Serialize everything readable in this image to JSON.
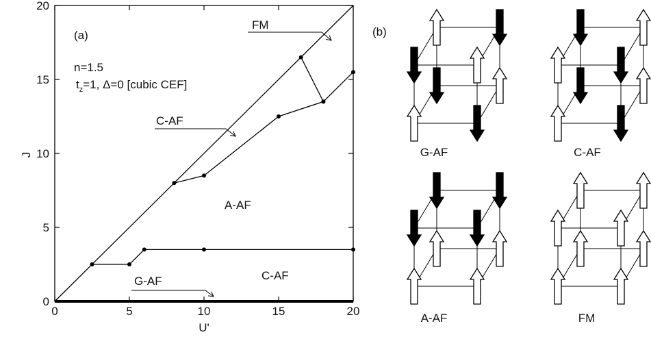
{
  "chart_data": {
    "type": "line",
    "x_label": "U'",
    "y_label": "J",
    "xlim": [
      0,
      20
    ],
    "ylim": [
      0,
      20
    ],
    "xticks": [
      0,
      5,
      10,
      15,
      20
    ],
    "yticks": [
      0,
      5,
      10,
      15,
      20
    ],
    "color": "#000000",
    "series": [
      {
        "x": [
          0,
          20
        ],
        "values": [
          0,
          20
        ],
        "markers": false,
        "linewidth": 1.3
      },
      {
        "x": [
          0,
          20
        ],
        "values": [
          0,
          0
        ],
        "markers": false,
        "linewidth": 4
      },
      {
        "x": [
          2.5,
          5,
          6,
          10,
          20
        ],
        "values": [
          2.5,
          2.5,
          3.5,
          3.5,
          3.5
        ],
        "markers": true,
        "linewidth": 1.3
      },
      {
        "x": [
          8,
          10,
          15,
          18,
          20
        ],
        "values": [
          8,
          8.5,
          12.5,
          13.5,
          15.5
        ],
        "markers": true,
        "linewidth": 1.3
      },
      {
        "x": [
          16.5,
          18
        ],
        "values": [
          16.5,
          13.5
        ],
        "markers": true,
        "linewidth": 1.3
      }
    ],
    "annotations": [
      "(a)",
      "n=1.5",
      "A-AF",
      "C-AF",
      "FM",
      "C-AF",
      "G-AF"
    ],
    "params": {
      "symbol": "t",
      "subscript": "z",
      "rest": "=1, Δ=0 [cubic CEF]"
    }
  },
  "spin_panel": {
    "label": "(b)",
    "configs": [
      {
        "name": "G-AF",
        "spins": [
          "up",
          "down",
          "down",
          "up",
          "down",
          "up",
          "up",
          "down"
        ]
      },
      {
        "name": "C-AF",
        "spins": [
          "down",
          "up",
          "up",
          "down",
          "down",
          "up",
          "up",
          "down"
        ]
      },
      {
        "name": "A-AF",
        "spins": [
          "down",
          "down",
          "down",
          "down",
          "up",
          "up",
          "up",
          "up"
        ]
      },
      {
        "name": "FM",
        "spins": [
          "up",
          "up",
          "up",
          "up",
          "up",
          "up",
          "up",
          "up"
        ]
      }
    ]
  }
}
